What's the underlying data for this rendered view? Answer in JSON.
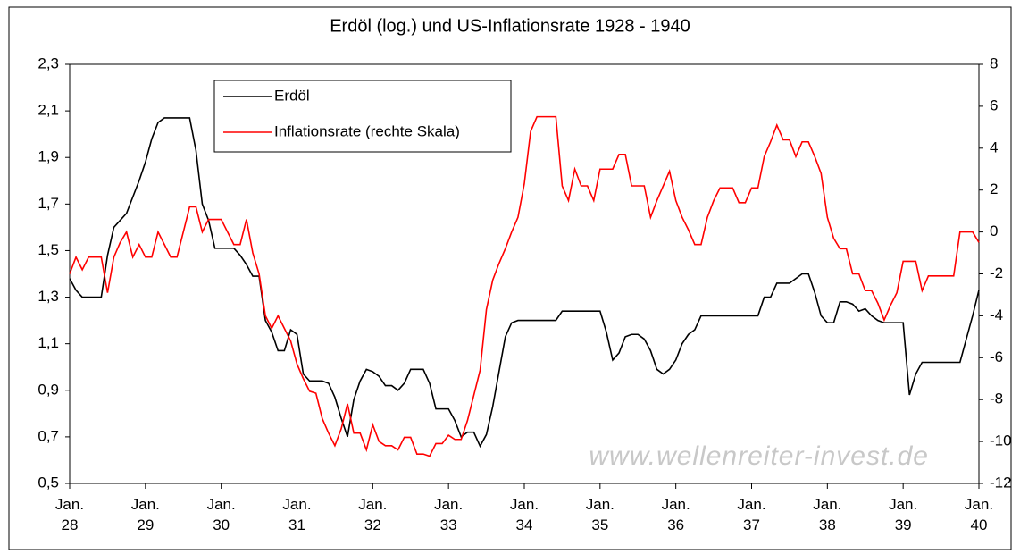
{
  "chart_data": {
    "type": "line",
    "title": "Erdöl (log.) und US-Inflationsrate 1928 - 1940",
    "annotation": "www.wellenreiter-invest.de",
    "x": [
      "1928-01",
      "1928-02",
      "1928-03",
      "1928-04",
      "1928-05",
      "1928-06",
      "1928-07",
      "1928-08",
      "1928-09",
      "1928-10",
      "1928-11",
      "1928-12",
      "1929-01",
      "1929-02",
      "1929-03",
      "1929-04",
      "1929-05",
      "1929-06",
      "1929-07",
      "1929-08",
      "1929-09",
      "1929-10",
      "1929-11",
      "1929-12",
      "1930-01",
      "1930-02",
      "1930-03",
      "1930-04",
      "1930-05",
      "1930-06",
      "1930-07",
      "1930-08",
      "1930-09",
      "1930-10",
      "1930-11",
      "1930-12",
      "1931-01",
      "1931-02",
      "1931-03",
      "1931-04",
      "1931-05",
      "1931-06",
      "1931-07",
      "1931-08",
      "1931-09",
      "1931-10",
      "1931-11",
      "1931-12",
      "1932-01",
      "1932-02",
      "1932-03",
      "1932-04",
      "1932-05",
      "1932-06",
      "1932-07",
      "1932-08",
      "1932-09",
      "1932-10",
      "1932-11",
      "1932-12",
      "1933-01",
      "1933-02",
      "1933-03",
      "1933-04",
      "1933-05",
      "1933-06",
      "1933-07",
      "1933-08",
      "1933-09",
      "1933-10",
      "1933-11",
      "1933-12",
      "1934-01",
      "1934-02",
      "1934-03",
      "1934-04",
      "1934-05",
      "1934-06",
      "1934-07",
      "1934-08",
      "1934-09",
      "1934-10",
      "1934-11",
      "1934-12",
      "1935-01",
      "1935-02",
      "1935-03",
      "1935-04",
      "1935-05",
      "1935-06",
      "1935-07",
      "1935-08",
      "1935-09",
      "1935-10",
      "1935-11",
      "1935-12",
      "1936-01",
      "1936-02",
      "1936-03",
      "1936-04",
      "1936-05",
      "1936-06",
      "1936-07",
      "1936-08",
      "1936-09",
      "1936-10",
      "1936-11",
      "1936-12",
      "1937-01",
      "1937-02",
      "1937-03",
      "1937-04",
      "1937-05",
      "1937-06",
      "1937-07",
      "1937-08",
      "1937-09",
      "1937-10",
      "1937-11",
      "1937-12",
      "1938-01",
      "1938-02",
      "1938-03",
      "1938-04",
      "1938-05",
      "1938-06",
      "1938-07",
      "1938-08",
      "1938-09",
      "1938-10",
      "1938-11",
      "1938-12",
      "1939-01",
      "1939-02",
      "1939-03",
      "1939-04",
      "1939-05",
      "1939-06",
      "1939-07",
      "1939-08",
      "1939-09",
      "1939-10",
      "1939-11",
      "1939-12",
      "1940-01"
    ],
    "xlim": [
      "1928-01",
      "1940-01"
    ],
    "xticks": [
      {
        "value": "1928-01",
        "label": "Jan.\n28"
      },
      {
        "value": "1929-01",
        "label": "Jan.\n29"
      },
      {
        "value": "1930-01",
        "label": "Jan.\n30"
      },
      {
        "value": "1931-01",
        "label": "Jan.\n31"
      },
      {
        "value": "1932-01",
        "label": "Jan.\n32"
      },
      {
        "value": "1933-01",
        "label": "Jan.\n33"
      },
      {
        "value": "1934-01",
        "label": "Jan.\n34"
      },
      {
        "value": "1935-01",
        "label": "Jan.\n35"
      },
      {
        "value": "1936-01",
        "label": "Jan.\n36"
      },
      {
        "value": "1937-01",
        "label": "Jan.\n37"
      },
      {
        "value": "1938-01",
        "label": "Jan.\n38"
      },
      {
        "value": "1939-01",
        "label": "Jan.\n39"
      },
      {
        "value": "1940-01",
        "label": "Jan.\n40"
      }
    ],
    "ylim": [
      0.5,
      2.3
    ],
    "yticks": [
      {
        "value": 0.5,
        "label": "0,5"
      },
      {
        "value": 0.7,
        "label": "0,7"
      },
      {
        "value": 0.9,
        "label": "0,9"
      },
      {
        "value": 1.1,
        "label": "1,1"
      },
      {
        "value": 1.3,
        "label": "1,3"
      },
      {
        "value": 1.5,
        "label": "1,5"
      },
      {
        "value": 1.7,
        "label": "1,7"
      },
      {
        "value": 1.9,
        "label": "1,9"
      },
      {
        "value": 2.1,
        "label": "2,1"
      },
      {
        "value": 2.3,
        "label": "2,3"
      }
    ],
    "y2lim": [
      -12,
      8
    ],
    "y2ticks": [
      -12,
      -10,
      -8,
      -6,
      -4,
      -2,
      0,
      2,
      4,
      6,
      8
    ],
    "legend": "upper left",
    "grid": false,
    "series": [
      {
        "name": "Erdöl",
        "color": "#000000",
        "values": [
          1.38,
          1.33,
          1.3,
          1.3,
          1.3,
          1.3,
          1.48,
          1.6,
          1.63,
          1.66,
          1.73,
          1.8,
          1.88,
          1.98,
          2.05,
          2.07,
          2.07,
          2.07,
          2.07,
          2.07,
          1.93,
          1.7,
          1.63,
          1.51,
          1.51,
          1.51,
          1.51,
          1.48,
          1.44,
          1.39,
          1.39,
          1.2,
          1.15,
          1.07,
          1.07,
          1.16,
          1.14,
          0.97,
          0.94,
          0.94,
          0.94,
          0.93,
          0.87,
          0.78,
          0.7,
          0.86,
          0.94,
          0.99,
          0.98,
          0.96,
          0.92,
          0.92,
          0.9,
          0.93,
          0.99,
          0.99,
          0.99,
          0.93,
          0.82,
          0.82,
          0.82,
          0.77,
          0.7,
          0.72,
          0.72,
          0.66,
          0.71,
          0.83,
          0.98,
          1.13,
          1.19,
          1.2,
          1.2,
          1.2,
          1.2,
          1.2,
          1.2,
          1.2,
          1.24,
          1.24,
          1.24,
          1.24,
          1.24,
          1.24,
          1.24,
          1.15,
          1.03,
          1.06,
          1.13,
          1.14,
          1.14,
          1.12,
          1.07,
          0.99,
          0.97,
          0.99,
          1.03,
          1.1,
          1.14,
          1.16,
          1.22,
          1.22,
          1.22,
          1.22,
          1.22,
          1.22,
          1.22,
          1.22,
          1.22,
          1.22,
          1.3,
          1.3,
          1.36,
          1.36,
          1.36,
          1.38,
          1.4,
          1.4,
          1.32,
          1.22,
          1.19,
          1.19,
          1.28,
          1.28,
          1.27,
          1.24,
          1.25,
          1.22,
          1.2,
          1.19,
          1.19,
          1.19,
          1.19,
          0.88,
          0.97,
          1.02,
          1.02,
          1.02,
          1.02,
          1.02,
          1.02,
          1.02,
          1.12,
          1.22,
          1.33
        ]
      },
      {
        "name": "Inflationsrate (rechte Skala)",
        "color": "#ff0000",
        "axis": "y2",
        "values": [
          -2.0,
          -1.2,
          -1.8,
          -1.2,
          -1.2,
          -1.2,
          -2.9,
          -1.2,
          -0.5,
          0,
          -1.2,
          -0.6,
          -1.2,
          -1.2,
          0,
          -0.6,
          -1.2,
          -1.2,
          0,
          1.2,
          1.2,
          0,
          0.6,
          0.6,
          0.6,
          0,
          -0.6,
          -0.6,
          0.6,
          -1.0,
          -2.0,
          -4.0,
          -4.6,
          -4.0,
          -4.6,
          -5.2,
          -6.3,
          -7.0,
          -7.6,
          -7.7,
          -8.9,
          -9.6,
          -10.2,
          -9.4,
          -8.2,
          -9.6,
          -9.6,
          -10.4,
          -9.2,
          -10.0,
          -10.2,
          -10.2,
          -10.4,
          -9.8,
          -9.8,
          -10.6,
          -10.6,
          -10.7,
          -10.1,
          -10.1,
          -9.7,
          -9.9,
          -9.9,
          -9.0,
          -7.8,
          -6.6,
          -3.7,
          -2.3,
          -1.5,
          -0.8,
          0,
          0.7,
          2.3,
          4.8,
          5.5,
          5.5,
          5.5,
          5.5,
          2.2,
          1.5,
          3.0,
          2.2,
          2.2,
          1.5,
          3.0,
          3.0,
          3.0,
          3.7,
          3.7,
          2.2,
          2.2,
          2.2,
          0.7,
          1.5,
          2.2,
          2.9,
          1.5,
          0.7,
          0.1,
          -0.6,
          -0.6,
          0.7,
          1.5,
          2.1,
          2.1,
          2.1,
          1.4,
          1.4,
          2.1,
          2.1,
          3.6,
          4.3,
          5.1,
          4.4,
          4.4,
          3.6,
          4.3,
          4.3,
          3.6,
          2.8,
          0.7,
          -0.3,
          -0.8,
          -0.8,
          -2.0,
          -2.0,
          -2.8,
          -2.8,
          -3.4,
          -4.2,
          -3.5,
          -2.9,
          -1.4,
          -1.4,
          -1.4,
          -2.8,
          -2.1,
          -2.1,
          -2.1,
          -2.1,
          -2.1,
          0,
          0,
          0,
          -0.5
        ]
      }
    ]
  }
}
